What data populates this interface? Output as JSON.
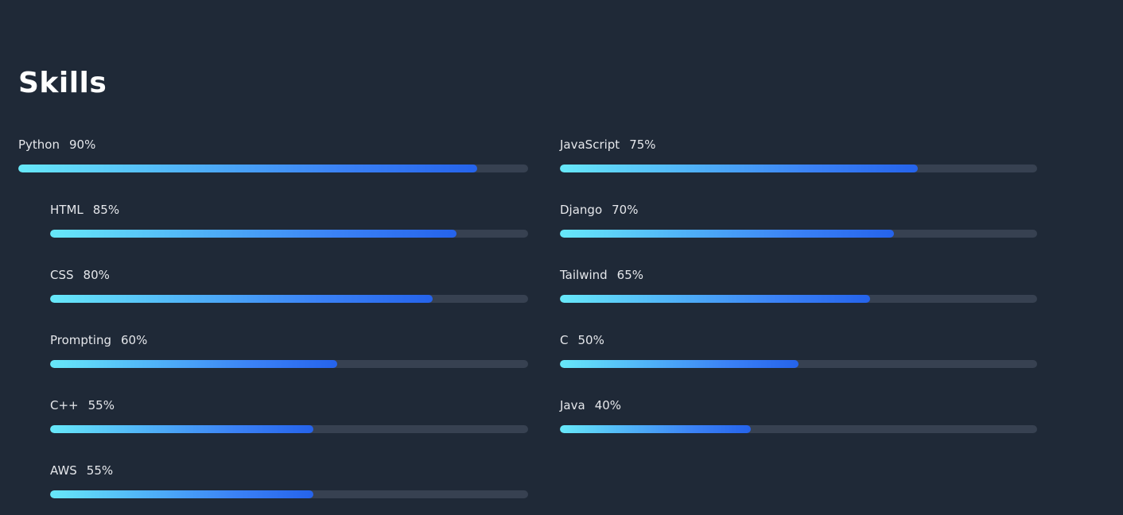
{
  "title": "Skills",
  "colors": {
    "background": "#1f2937",
    "track": "#374151",
    "gradient_start": "#67e8f9",
    "gradient_end": "#2563eb"
  },
  "left_skills": [
    {
      "name": "Python",
      "percent_label": "90%",
      "level": 0.9
    },
    {
      "name": "HTML",
      "percent_label": "85%",
      "level": 0.85
    },
    {
      "name": "CSS",
      "percent_label": "80%",
      "level": 0.8
    },
    {
      "name": "Prompting",
      "percent_label": "60%",
      "level": 0.6
    },
    {
      "name": "C++",
      "percent_label": "55%",
      "level": 0.55
    },
    {
      "name": "AWS",
      "percent_label": "55%",
      "level": 0.55
    }
  ],
  "right_skills": [
    {
      "name": "JavaScript",
      "percent_label": "75%",
      "level": 0.75
    },
    {
      "name": "Django",
      "percent_label": "70%",
      "level": 0.7
    },
    {
      "name": "Tailwind",
      "percent_label": "65%",
      "level": 0.65
    },
    {
      "name": "C",
      "percent_label": "50%",
      "level": 0.5
    },
    {
      "name": "Java",
      "percent_label": "40%",
      "level": 0.4
    }
  ]
}
